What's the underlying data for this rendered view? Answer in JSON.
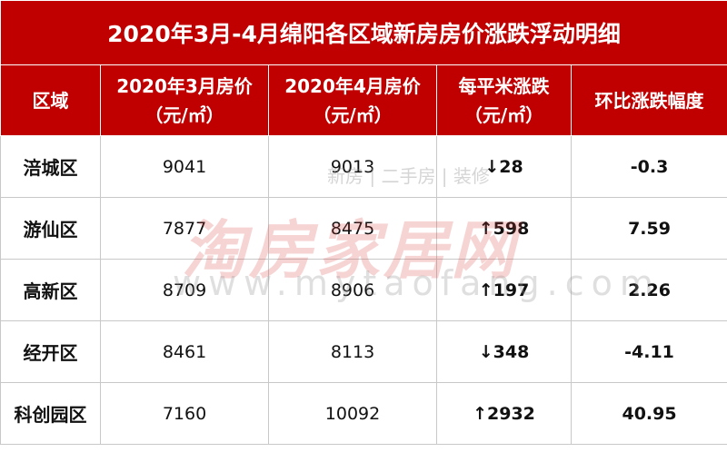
{
  "title": "2020年3月-4月绵阳各区域新房房价涨跌浮动明细",
  "table": {
    "header": [
      [
        "区域"
      ],
      [
        "2020年3月房价",
        "（元/㎡）"
      ],
      [
        "2020年4月房价",
        "（元/㎡）"
      ],
      [
        "每平米涨跌",
        "（元/㎡）"
      ],
      [
        "环比涨跌幅度"
      ]
    ],
    "rows": [
      [
        "涪城区",
        "9041",
        "9013",
        "↓28",
        "-0.3"
      ],
      [
        "游仙区",
        "7877",
        "8475",
        "↑598",
        "7.59"
      ],
      [
        "高新区",
        "8709",
        "8906",
        "↑197",
        "2.26"
      ],
      [
        "经开区",
        "8461",
        "8113",
        "↓348",
        "-4.11"
      ],
      [
        "科创园区",
        "7160",
        "10092",
        "↑2932",
        "40.95"
      ]
    ]
  },
  "watermark": {
    "logo": "淘房家居网",
    "tagline": "新房 | 二手房 | 装修",
    "url": "www.mytaofang.com"
  }
}
